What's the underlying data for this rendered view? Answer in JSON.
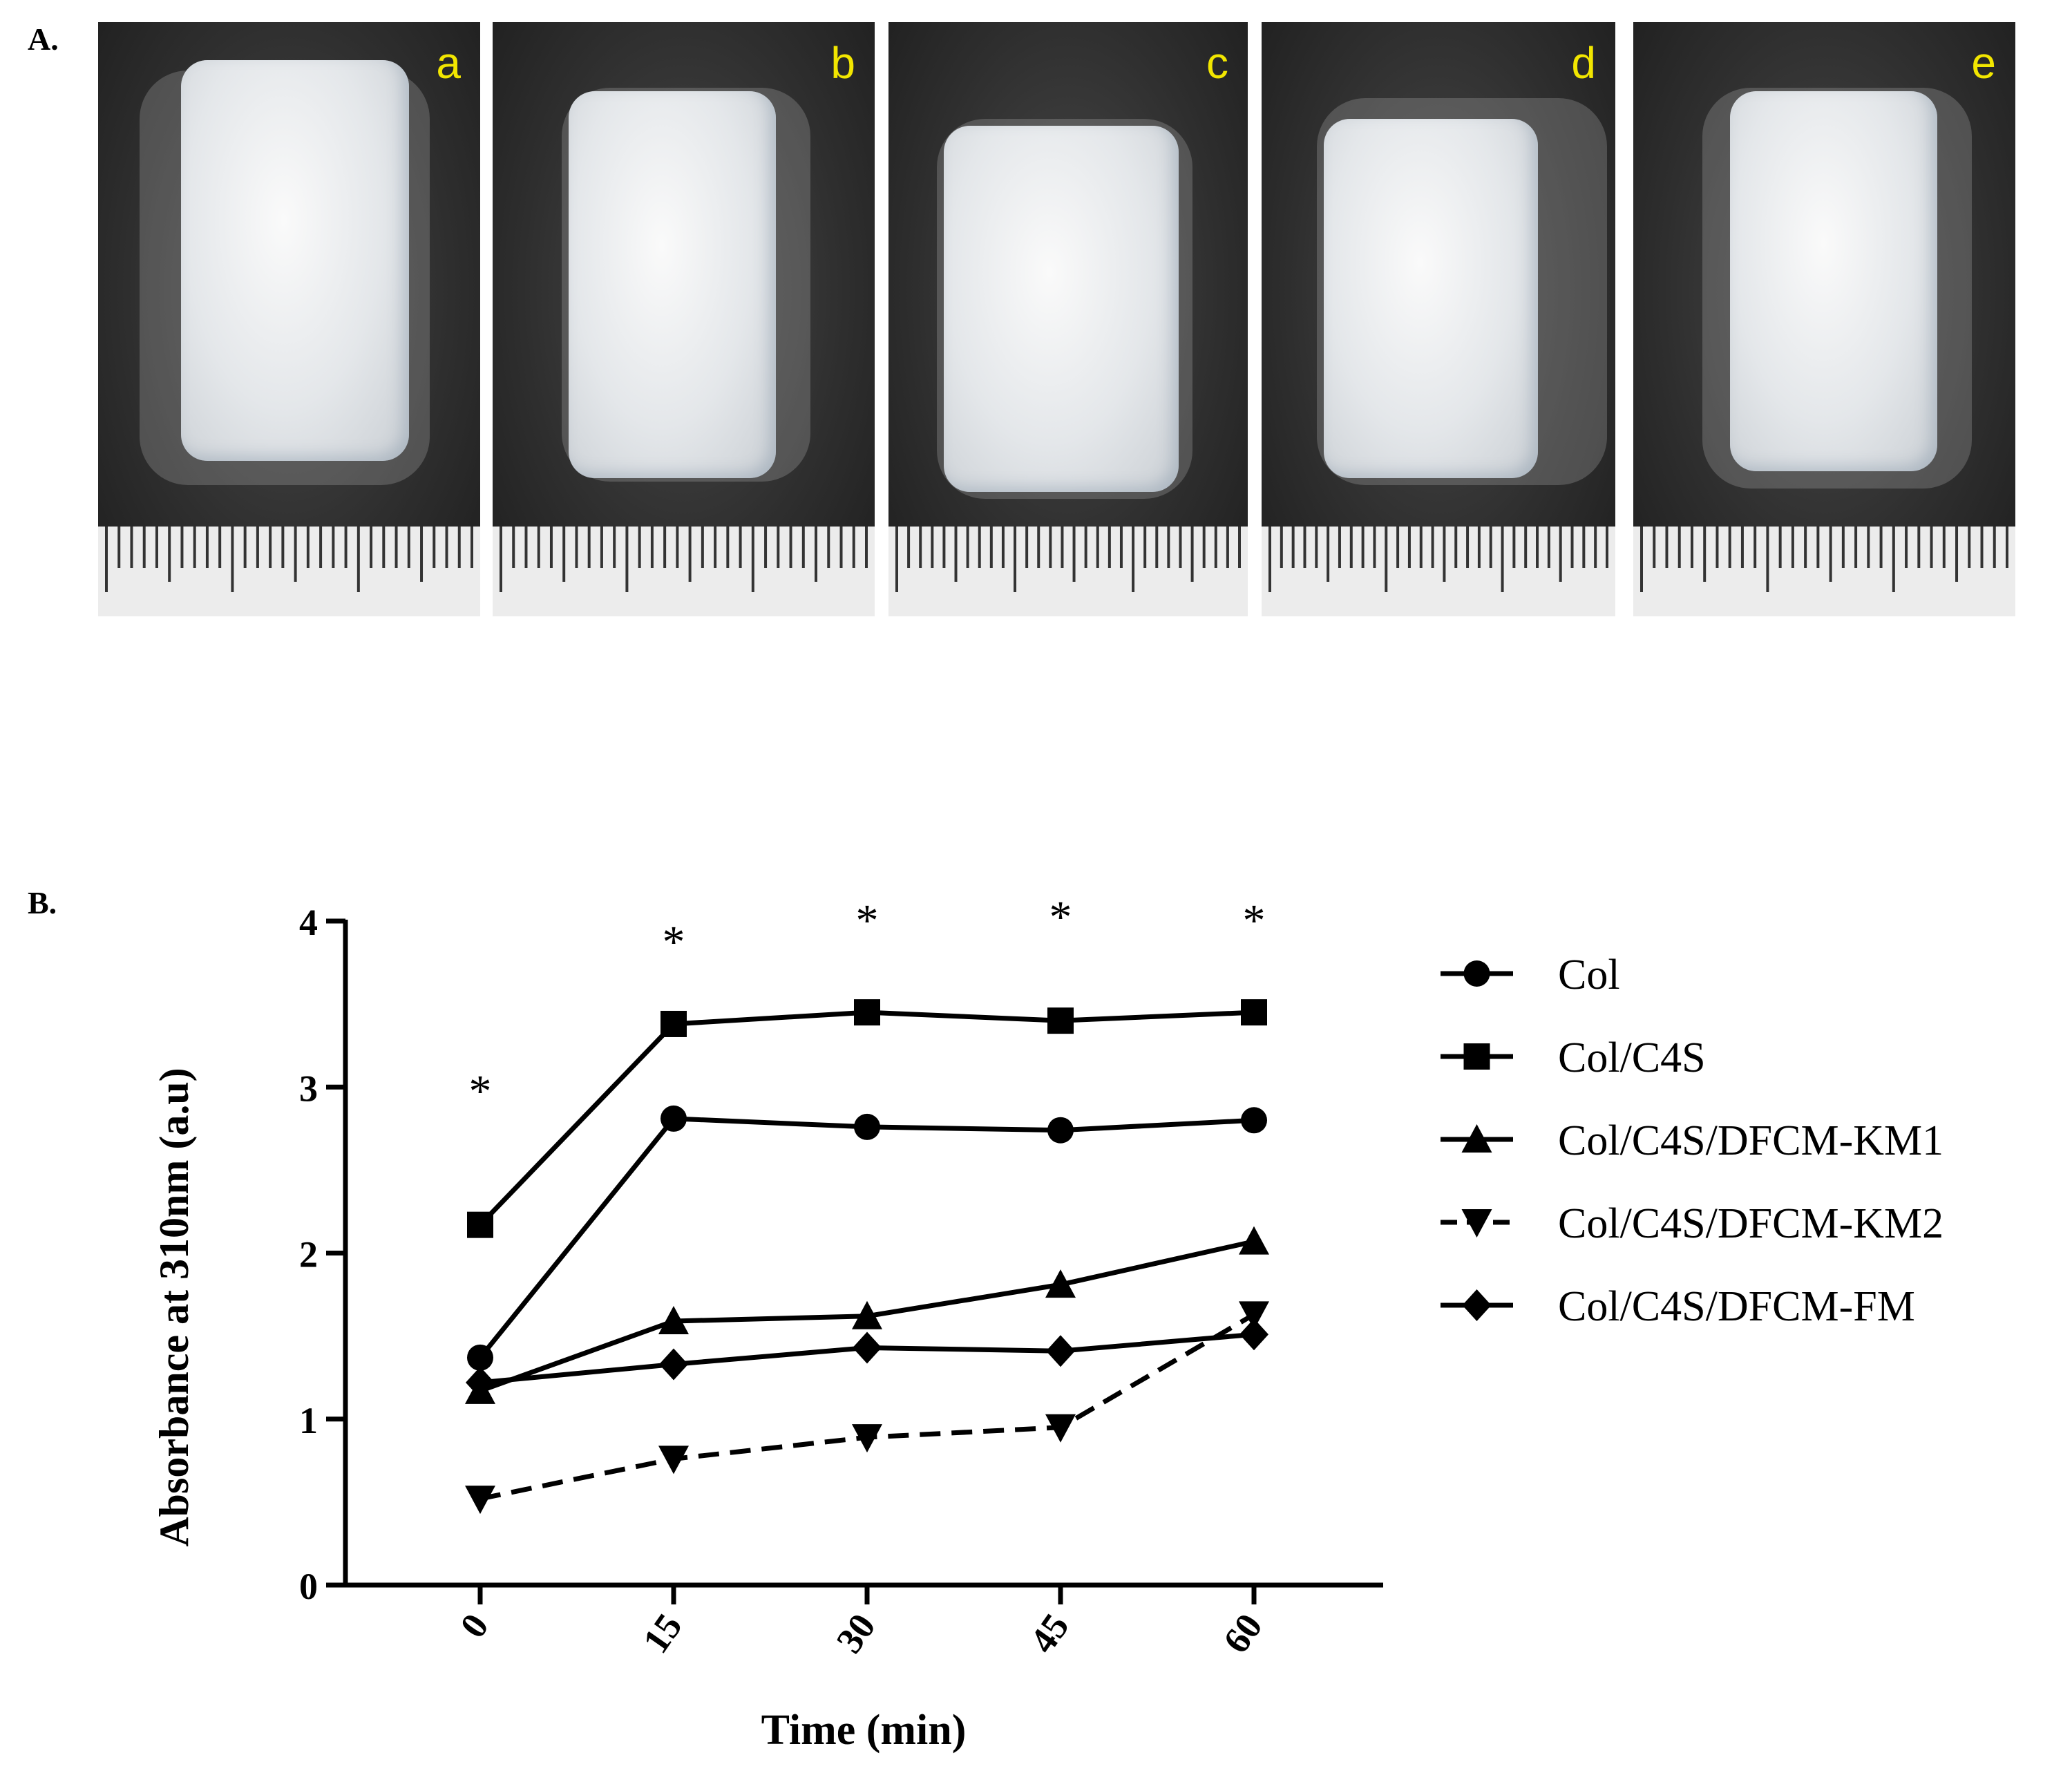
{
  "panel_a": {
    "label": "A.",
    "photos": [
      {
        "letter": "a"
      },
      {
        "letter": "b"
      },
      {
        "letter": "c"
      },
      {
        "letter": "d"
      },
      {
        "letter": "e"
      }
    ]
  },
  "panel_b": {
    "label": "B."
  },
  "chart_data": {
    "type": "line",
    "xlabel": "Time (min)",
    "ylabel": "Absorbance at 310nm (a.u)",
    "x": [
      0,
      15,
      30,
      45,
      60
    ],
    "x_tick_labels": [
      "0",
      "15",
      "30",
      "45",
      "60"
    ],
    "ylim": [
      0,
      4
    ],
    "y_ticks": [
      0,
      1,
      2,
      3,
      4
    ],
    "y_tick_labels": [
      "0",
      "1",
      "2",
      "3",
      "4"
    ],
    "grid": false,
    "legend_position": "right",
    "series": [
      {
        "name": "Col",
        "marker": "circle",
        "dashed": false,
        "values": [
          1.37,
          2.81,
          2.76,
          2.74,
          2.8
        ]
      },
      {
        "name": "Col/C4S",
        "marker": "square",
        "dashed": false,
        "values": [
          2.17,
          3.38,
          3.45,
          3.4,
          3.45
        ]
      },
      {
        "name": "Col/C4S/DFCM-KM1",
        "marker": "triangle-up",
        "dashed": false,
        "values": [
          1.17,
          1.59,
          1.62,
          1.81,
          2.07
        ]
      },
      {
        "name": "Col/C4S/DFCM-KM2",
        "marker": "triangle-down",
        "dashed": true,
        "values": [
          0.52,
          0.76,
          0.89,
          0.95,
          1.63
        ]
      },
      {
        "name": "Col/C4S/DFCM-FM",
        "marker": "diamond",
        "dashed": false,
        "values": [
          1.22,
          1.33,
          1.43,
          1.41,
          1.51
        ]
      }
    ],
    "annotations": [
      {
        "text": "*",
        "x": 0,
        "y": 3.05
      },
      {
        "text": "*",
        "x": 15,
        "y": 3.95
      },
      {
        "text": "*",
        "x": 30,
        "y": 4.08
      },
      {
        "text": "*",
        "x": 45,
        "y": 4.1
      },
      {
        "text": "*",
        "x": 60,
        "y": 4.08
      }
    ]
  }
}
